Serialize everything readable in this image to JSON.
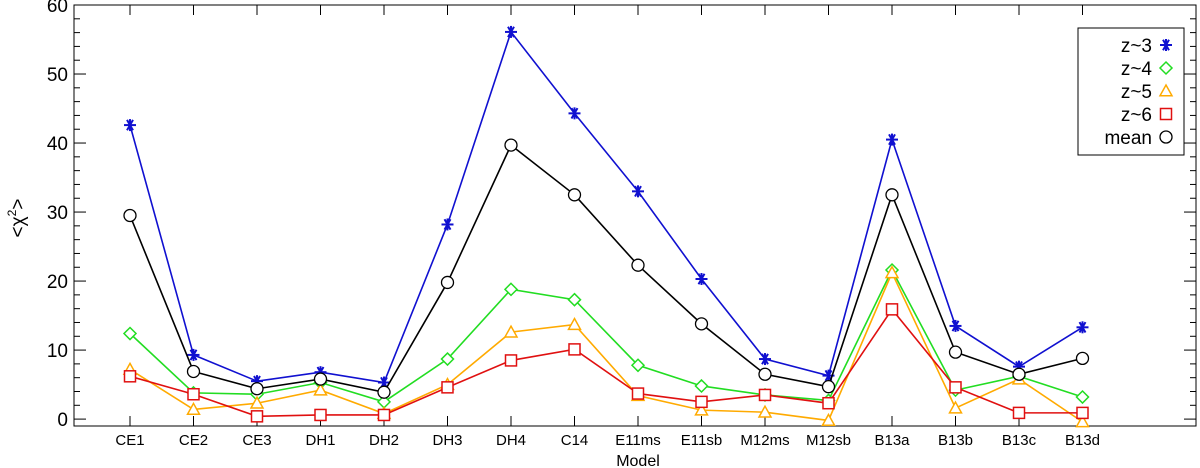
{
  "chart_data": {
    "type": "line",
    "xlabel": "Model",
    "ylabel_parts": {
      "open": "<",
      "symbol": "χ",
      "sup": "2",
      "close": ">"
    },
    "ylim": [
      -1,
      60
    ],
    "yticks": [
      0,
      10,
      20,
      30,
      40,
      50,
      60
    ],
    "grid": false,
    "legend_position": "top-right",
    "categories": [
      "CE1",
      "CE2",
      "CE3",
      "DH1",
      "DH2",
      "DH3",
      "DH4",
      "C14",
      "E11ms",
      "E11sb",
      "M12ms",
      "M12sb",
      "B13a",
      "B13b",
      "B13c",
      "B13d"
    ],
    "series": [
      {
        "name": "z~3",
        "color": "#1010d0",
        "marker": "asterisk",
        "values": [
          42.6,
          9.3,
          5.5,
          6.8,
          5.3,
          28.2,
          56.1,
          44.3,
          33.0,
          20.3,
          8.7,
          6.3,
          40.5,
          13.5,
          7.6,
          13.3
        ]
      },
      {
        "name": "z~4",
        "color": "#22dd22",
        "marker": "diamond",
        "values": [
          12.4,
          3.8,
          3.6,
          5.3,
          2.5,
          8.7,
          18.8,
          17.3,
          7.8,
          4.8,
          3.5,
          2.7,
          21.6,
          4.2,
          6.2,
          3.2
        ]
      },
      {
        "name": "z~5",
        "color": "#ffaa00",
        "marker": "triangle",
        "values": [
          7.2,
          1.4,
          2.3,
          4.2,
          0.8,
          5.0,
          12.6,
          13.7,
          3.4,
          1.3,
          1.0,
          -0.2,
          21.2,
          1.6,
          5.8,
          -0.4
        ]
      },
      {
        "name": "z~6",
        "color": "#e01010",
        "marker": "square",
        "values": [
          6.2,
          3.6,
          0.4,
          0.6,
          0.6,
          4.6,
          8.5,
          10.1,
          3.7,
          2.5,
          3.5,
          2.3,
          15.9,
          4.6,
          0.9,
          0.9
        ]
      },
      {
        "name": "mean",
        "color": "#000000",
        "marker": "circle",
        "values": [
          29.5,
          6.9,
          4.4,
          5.8,
          3.9,
          19.8,
          39.7,
          32.5,
          22.3,
          13.8,
          6.5,
          4.7,
          32.5,
          9.7,
          6.5,
          8.8
        ]
      }
    ]
  }
}
